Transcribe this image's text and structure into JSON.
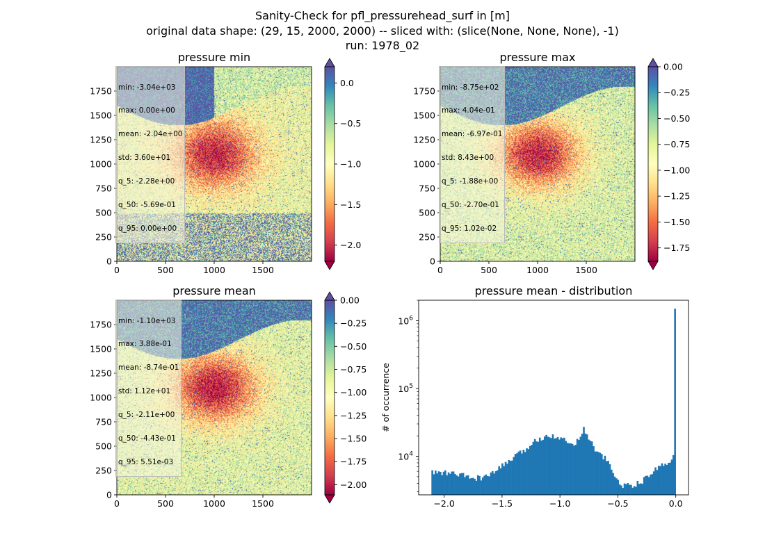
{
  "figure": {
    "title_lines": [
      "Sanity-Check for pfl_pressurehead_surf in [m]",
      "original data shape: (29, 15, 2000, 2000) -- sliced with: (slice(None, None, None), -1)",
      "run: 1978_02"
    ]
  },
  "chart_data": [
    {
      "type": "heatmap",
      "title": "pressure min",
      "colormap": "Spectral",
      "x_ticks": [
        0,
        500,
        1000,
        1500
      ],
      "y_ticks": [
        0,
        250,
        500,
        750,
        1000,
        1250,
        1500,
        1750
      ],
      "xlim": [
        0,
        2000
      ],
      "ylim": [
        0,
        2000
      ],
      "color_range": [
        -2.2,
        0.2
      ],
      "colorbar_ticks": [
        0.0,
        -0.5,
        -1.0,
        -1.5,
        -2.0
      ],
      "colorbar_tick_labels": [
        "0.0",
        "−0.5",
        "−1.0",
        "−1.5",
        "−2.0"
      ],
      "colorbar_extend_top_color": "#5e4fa2",
      "colorbar_extend_bottom_color": "#9e0142",
      "stats": [
        "min: -3.04e+03",
        "max: 0.00e+00",
        "mean: -2.04e+00",
        "std: 3.60e+01",
        "q_5: -2.28e+00",
        "q_50: -5.69e-01",
        "q_95: 0.00e+00"
      ]
    },
    {
      "type": "heatmap",
      "title": "pressure max",
      "colormap": "Spectral",
      "x_ticks": [
        0,
        500,
        1000,
        1500
      ],
      "y_ticks": [
        0,
        250,
        500,
        750,
        1000,
        1250,
        1500,
        1750
      ],
      "xlim": [
        0,
        2000
      ],
      "ylim": [
        0,
        2000
      ],
      "color_range": [
        -1.88,
        0.0
      ],
      "colorbar_ticks": [
        0.0,
        -0.25,
        -0.5,
        -0.75,
        -1.0,
        -1.25,
        -1.5,
        -1.75
      ],
      "colorbar_tick_labels": [
        "0.00",
        "−0.25",
        "−0.50",
        "−0.75",
        "−1.00",
        "−1.25",
        "−1.50",
        "−1.75"
      ],
      "colorbar_extend_top_color": "#5e4fa2",
      "colorbar_extend_bottom_color": "#9e0142",
      "stats": [
        "min: -8.75e+02",
        "max: 4.04e-01",
        "mean: -6.97e-01",
        "std: 8.43e+00",
        "q_5: -1.88e+00",
        "q_50: -2.70e-01",
        "q_95: 1.02e-02"
      ]
    },
    {
      "type": "heatmap",
      "title": "pressure mean",
      "colormap": "Spectral",
      "x_ticks": [
        0,
        500,
        1000,
        1500
      ],
      "y_ticks": [
        0,
        250,
        500,
        750,
        1000,
        1250,
        1500,
        1750
      ],
      "xlim": [
        0,
        2000
      ],
      "ylim": [
        0,
        2000
      ],
      "color_range": [
        -2.11,
        0.0
      ],
      "colorbar_ticks": [
        0.0,
        -0.25,
        -0.5,
        -0.75,
        -1.0,
        -1.25,
        -1.5,
        -1.75,
        -2.0
      ],
      "colorbar_tick_labels": [
        "0.00",
        "−0.25",
        "−0.50",
        "−0.75",
        "−1.00",
        "−1.25",
        "−1.50",
        "−1.75",
        "−2.00"
      ],
      "colorbar_extend_top_color": "#5e4fa2",
      "colorbar_extend_bottom_color": "#9e0142",
      "stats": [
        "min: -1.10e+03",
        "max: 3.88e-01",
        "mean: -8.74e-01",
        "std: 1.12e+01",
        "q_5: -2.11e+00",
        "q_50: -4.43e-01",
        "q_95: 5.51e-03"
      ]
    },
    {
      "type": "bar",
      "title": "pressure mean - distribution",
      "ylabel": "# of occurrence",
      "xlabel": "",
      "yscale": "log",
      "xlim": [
        -2.22,
        0.11
      ],
      "ylim": [
        2700,
        2000000
      ],
      "x_ticks": [
        -2.0,
        -1.5,
        -1.0,
        -0.5,
        0.0
      ],
      "x_tick_labels": [
        "−2.0",
        "−1.5",
        "−1.0",
        "−0.5",
        "0.0"
      ],
      "y_ticks": [
        10000,
        100000,
        1000000
      ],
      "y_tick_labels": [
        "10^4",
        "10^5",
        "10^6"
      ],
      "bar_color": "#1f77b4",
      "bin_range": [
        -2.11,
        0.0
      ],
      "bin_count": 150,
      "profile_points": [
        [
          -2.11,
          5800
        ],
        [
          -2.0,
          5700
        ],
        [
          -1.9,
          5500
        ],
        [
          -1.8,
          5000
        ],
        [
          -1.75,
          4700
        ],
        [
          -1.7,
          4800
        ],
        [
          -1.6,
          5200
        ],
        [
          -1.55,
          6200
        ],
        [
          -1.5,
          7200
        ],
        [
          -1.4,
          9500
        ],
        [
          -1.3,
          12500
        ],
        [
          -1.25,
          15000
        ],
        [
          -1.2,
          17500
        ],
        [
          -1.1,
          21000
        ],
        [
          -1.0,
          19000
        ],
        [
          -0.95,
          16500
        ],
        [
          -0.9,
          15000
        ],
        [
          -0.85,
          17000
        ],
        [
          -0.8,
          25500
        ],
        [
          -0.77,
          22000
        ],
        [
          -0.72,
          15000
        ],
        [
          -0.68,
          11500
        ],
        [
          -0.65,
          10500
        ],
        [
          -0.6,
          9000
        ],
        [
          -0.55,
          6500
        ],
        [
          -0.52,
          4500
        ],
        [
          -0.45,
          3700
        ],
        [
          -0.35,
          3800
        ],
        [
          -0.3,
          4200
        ],
        [
          -0.25,
          4800
        ],
        [
          -0.2,
          5800
        ],
        [
          -0.15,
          7200
        ],
        [
          -0.1,
          7500
        ],
        [
          -0.05,
          8800
        ],
        [
          -0.02,
          10000
        ],
        [
          -0.01,
          12500
        ],
        [
          0.0,
          1500000
        ]
      ]
    }
  ]
}
